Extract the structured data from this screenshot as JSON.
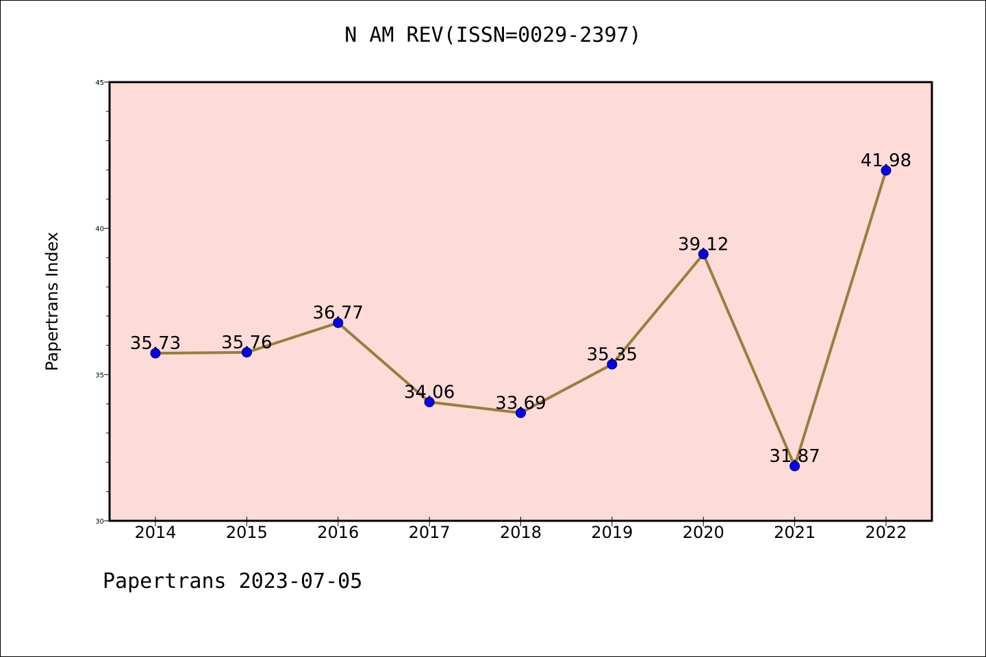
{
  "chart_data": {
    "type": "line",
    "title": "N AM REV(ISSN=0029-2397)",
    "xlabel": "",
    "ylabel": "Papertrans Index",
    "x": [
      "2014",
      "2015",
      "2016",
      "2017",
      "2018",
      "2019",
      "2020",
      "2021",
      "2022"
    ],
    "values": [
      35.73,
      35.76,
      36.77,
      34.06,
      33.69,
      35.35,
      39.12,
      31.87,
      41.98
    ],
    "data_labels": [
      "35.73",
      "35.76",
      "36.77",
      "34.06",
      "33.69",
      "35.35",
      "39.12",
      "31.87",
      "41.98"
    ],
    "ylim": [
      30,
      45
    ],
    "yticks": [
      "30",
      "35",
      "40",
      "45"
    ],
    "grid": false,
    "colors": {
      "plot_background": "#fddbd8",
      "line": "#95803c",
      "marker": "#0000ff"
    }
  },
  "footer": "Papertrans 2023-07-05"
}
